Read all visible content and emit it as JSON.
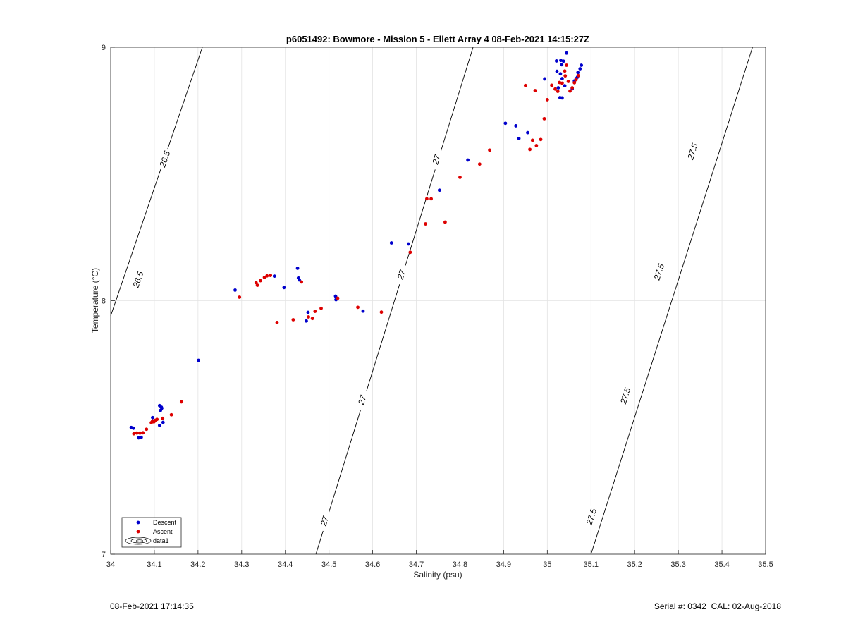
{
  "chart_data": {
    "type": "scatter",
    "title": "p6051492: Bowmore - Mission 5 - Ellett Array 4 08-Feb-2021 14:15:27Z",
    "xlabel": "Salinity (psu)",
    "ylabel": "Temperature (°C)",
    "xlim": [
      34,
      35.5
    ],
    "ylim": [
      7,
      9
    ],
    "xticks": [
      "34",
      "34.1",
      "34.2",
      "34.3",
      "34.4",
      "34.5",
      "34.6",
      "34.7",
      "34.8",
      "34.9",
      "35",
      "35.1",
      "35.2",
      "35.3",
      "35.4",
      "35.5"
    ],
    "yticks": [
      "7",
      "8",
      "9"
    ],
    "grid": true,
    "legend_position": "bottom-left",
    "series": [
      {
        "name": "Descent",
        "color": "#0000cc",
        "points": [
          [
            34.047,
            7.5
          ],
          [
            34.052,
            7.497
          ],
          [
            34.064,
            7.459
          ],
          [
            34.07,
            7.461
          ],
          [
            34.096,
            7.539
          ],
          [
            34.112,
            7.586
          ],
          [
            34.116,
            7.58
          ],
          [
            34.114,
            7.567
          ],
          [
            34.117,
            7.576
          ],
          [
            34.112,
            7.508
          ],
          [
            34.12,
            7.52
          ],
          [
            34.201,
            7.765
          ],
          [
            34.285,
            8.042
          ],
          [
            34.375,
            8.097
          ],
          [
            34.397,
            8.052
          ],
          [
            34.428,
            8.128
          ],
          [
            34.43,
            8.09
          ],
          [
            34.432,
            8.082
          ],
          [
            34.452,
            7.954
          ],
          [
            34.448,
            7.92
          ],
          [
            34.515,
            8.018
          ],
          [
            34.516,
            8.004
          ],
          [
            34.578,
            7.959
          ],
          [
            34.643,
            8.228
          ],
          [
            34.682,
            8.224
          ],
          [
            34.753,
            8.436
          ],
          [
            34.818,
            8.555
          ],
          [
            34.904,
            8.7
          ],
          [
            34.928,
            8.69
          ],
          [
            34.935,
            8.64
          ],
          [
            34.955,
            8.663
          ],
          [
            34.994,
            8.875
          ],
          [
            35.021,
            8.946
          ],
          [
            35.031,
            8.948
          ],
          [
            35.033,
            8.931
          ],
          [
            35.037,
            8.945
          ],
          [
            35.044,
            8.977
          ],
          [
            35.022,
            8.905
          ],
          [
            35.03,
            8.895
          ],
          [
            35.034,
            8.876
          ],
          [
            35.025,
            8.84
          ],
          [
            35.029,
            8.801
          ],
          [
            35.034,
            8.8
          ],
          [
            35.04,
            8.848
          ],
          [
            35.057,
            8.836
          ],
          [
            35.062,
            8.867
          ],
          [
            35.07,
            8.9
          ],
          [
            35.075,
            8.915
          ],
          [
            35.078,
            8.929
          ],
          [
            35.066,
            8.876
          ],
          [
            35.069,
            8.882
          ]
        ]
      },
      {
        "name": "Ascent",
        "color": "#dd0000",
        "points": [
          [
            34.053,
            7.475
          ],
          [
            34.06,
            7.478
          ],
          [
            34.067,
            7.478
          ],
          [
            34.074,
            7.479
          ],
          [
            34.082,
            7.493
          ],
          [
            34.093,
            7.519
          ],
          [
            34.096,
            7.526
          ],
          [
            34.099,
            7.522
          ],
          [
            34.102,
            7.528
          ],
          [
            34.106,
            7.532
          ],
          [
            34.119,
            7.536
          ],
          [
            34.139,
            7.55
          ],
          [
            34.162,
            7.601
          ],
          [
            34.295,
            8.014
          ],
          [
            34.333,
            8.071
          ],
          [
            34.336,
            8.061
          ],
          [
            34.343,
            8.079
          ],
          [
            34.352,
            8.092
          ],
          [
            34.358,
            8.098
          ],
          [
            34.366,
            8.1
          ],
          [
            34.381,
            7.914
          ],
          [
            34.418,
            7.925
          ],
          [
            34.437,
            8.074
          ],
          [
            34.453,
            7.936
          ],
          [
            34.462,
            7.93
          ],
          [
            34.468,
            7.958
          ],
          [
            34.482,
            7.97
          ],
          [
            34.52,
            8.01
          ],
          [
            34.566,
            7.974
          ],
          [
            34.62,
            7.955
          ],
          [
            34.686,
            8.191
          ],
          [
            34.721,
            8.303
          ],
          [
            34.724,
            8.402
          ],
          [
            34.734,
            8.402
          ],
          [
            34.766,
            8.31
          ],
          [
            34.8,
            8.487
          ],
          [
            34.845,
            8.539
          ],
          [
            34.868,
            8.594
          ],
          [
            34.95,
            8.849
          ],
          [
            34.96,
            8.597
          ],
          [
            34.966,
            8.633
          ],
          [
            34.972,
            8.829
          ],
          [
            34.975,
            8.612
          ],
          [
            34.985,
            8.636
          ],
          [
            34.993,
            8.718
          ],
          [
            35.0,
            8.793
          ],
          [
            35.01,
            8.85
          ],
          [
            35.018,
            8.835
          ],
          [
            35.024,
            8.826
          ],
          [
            35.028,
            8.861
          ],
          [
            35.034,
            8.858
          ],
          [
            35.04,
            8.906
          ],
          [
            35.044,
            8.929
          ],
          [
            35.041,
            8.887
          ],
          [
            35.048,
            8.865
          ],
          [
            35.052,
            8.827
          ],
          [
            35.057,
            8.84
          ],
          [
            35.062,
            8.86
          ],
          [
            35.066,
            8.872
          ],
          [
            35.071,
            8.888
          ]
        ]
      }
    ],
    "contours": [
      {
        "label": "26.5",
        "line": [
          [
            34.0,
            7.94
          ],
          [
            34.21,
            9.0
          ]
        ],
        "label_positions": [
          [
            34.063,
            8.084
          ],
          [
            34.124,
            8.559
          ]
        ]
      },
      {
        "label": "27",
        "line": [
          [
            34.47,
            7.0
          ],
          [
            34.83,
            9.0
          ]
        ],
        "label_positions": [
          [
            34.49,
            7.131
          ],
          [
            34.576,
            7.608
          ],
          [
            34.666,
            8.103
          ],
          [
            34.746,
            8.557
          ]
        ]
      },
      {
        "label": "27.5",
        "line": [
          [
            35.1,
            7.0
          ],
          [
            35.47,
            9.0
          ]
        ],
        "label_positions": [
          [
            35.101,
            7.148
          ],
          [
            35.179,
            7.625
          ],
          [
            35.256,
            8.114
          ],
          [
            35.333,
            8.589
          ]
        ]
      }
    ],
    "legend": {
      "entries": [
        "Descent",
        "Ascent",
        "data1"
      ]
    }
  },
  "footer": {
    "left": "08-Feb-2021 17:14:35",
    "right": "Serial #: 0342  CAL: 02-Aug-2018"
  }
}
